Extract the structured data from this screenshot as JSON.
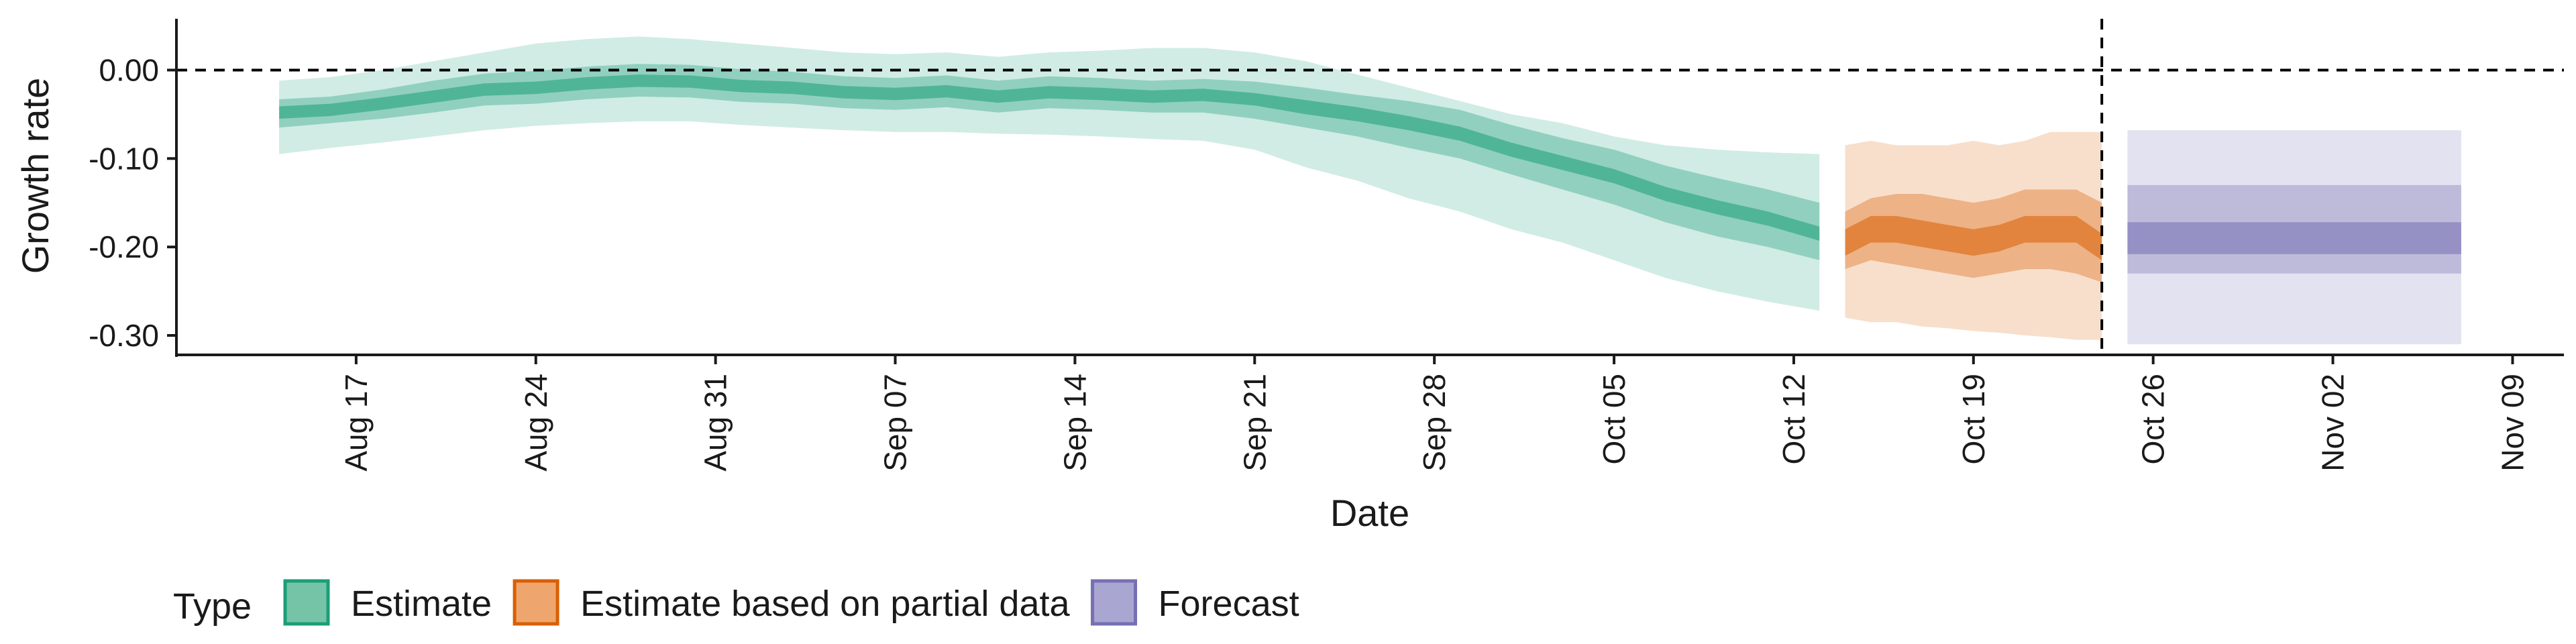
{
  "chart_data": {
    "type": "area",
    "xlabel": "Date",
    "ylabel": "Growth rate",
    "x_ticks": [
      "2020-08-17",
      "2020-08-24",
      "2020-08-31",
      "2020-09-07",
      "2020-09-14",
      "2020-09-21",
      "2020-09-28",
      "2020-10-05",
      "2020-10-12",
      "2020-10-19",
      "2020-10-26",
      "2020-11-02",
      "2020-11-09"
    ],
    "x_tick_labels": [
      "Aug 17",
      "Aug 24",
      "Aug 31",
      "Sep 07",
      "Sep 14",
      "Sep 21",
      "Sep 28",
      "Oct 05",
      "Oct 12",
      "Oct 19",
      "Oct 26",
      "Nov 02",
      "Nov 09"
    ],
    "xlim": [
      "2020-08-10",
      "2020-11-11"
    ],
    "y_ticks": [
      0.0,
      -0.1,
      -0.2,
      -0.3
    ],
    "y_tick_labels": [
      "0.00",
      "-0.10",
      "-0.20",
      "-0.30"
    ],
    "ylim": [
      -0.322,
      0.058
    ],
    "reference_lines": [
      {
        "axis": "y",
        "value": 0.0,
        "style": "dashed"
      },
      {
        "axis": "x",
        "value": "2020-10-24",
        "style": "dashed"
      }
    ],
    "legend": {
      "title": "Type",
      "position": "bottom-left",
      "entries": [
        {
          "label": "Estimate",
          "fill": "#76c4a8",
          "stroke": "#1b9e77"
        },
        {
          "label": "Estimate based on partial data",
          "fill": "#eea66e",
          "stroke": "#d95f02"
        },
        {
          "label": "Forecast",
          "fill": "#a9a6d2",
          "stroke": "#7570b3"
        }
      ]
    },
    "series": [
      {
        "name": "Estimate",
        "color": "#1b9e77",
        "x": [
          "2020-08-14",
          "2020-08-16",
          "2020-08-18",
          "2020-08-20",
          "2020-08-22",
          "2020-08-24",
          "2020-08-26",
          "2020-08-28",
          "2020-08-30",
          "2020-09-01",
          "2020-09-03",
          "2020-09-05",
          "2020-09-07",
          "2020-09-09",
          "2020-09-11",
          "2020-09-13",
          "2020-09-15",
          "2020-09-17",
          "2020-09-19",
          "2020-09-21",
          "2020-09-23",
          "2020-09-25",
          "2020-09-27",
          "2020-09-29",
          "2020-10-01",
          "2020-10-03",
          "2020-10-05",
          "2020-10-07",
          "2020-10-09",
          "2020-10-11",
          "2020-10-13"
        ],
        "median": [
          -0.048,
          -0.045,
          -0.038,
          -0.03,
          -0.022,
          -0.02,
          -0.015,
          -0.012,
          -0.013,
          -0.018,
          -0.02,
          -0.025,
          -0.027,
          -0.024,
          -0.03,
          -0.025,
          -0.027,
          -0.03,
          -0.028,
          -0.033,
          -0.042,
          -0.05,
          -0.06,
          -0.072,
          -0.09,
          -0.105,
          -0.12,
          -0.14,
          -0.155,
          -0.168,
          -0.185
        ],
        "bands": [
          {
            "level": "90%",
            "lower": [
              -0.095,
              -0.088,
              -0.082,
              -0.075,
              -0.068,
              -0.063,
              -0.06,
              -0.058,
              -0.058,
              -0.062,
              -0.065,
              -0.068,
              -0.07,
              -0.07,
              -0.072,
              -0.073,
              -0.075,
              -0.078,
              -0.08,
              -0.09,
              -0.11,
              -0.125,
              -0.145,
              -0.16,
              -0.18,
              -0.195,
              -0.215,
              -0.235,
              -0.25,
              -0.262,
              -0.272
            ],
            "upper": [
              -0.012,
              -0.008,
              0.0,
              0.01,
              0.02,
              0.03,
              0.035,
              0.038,
              0.035,
              0.03,
              0.025,
              0.02,
              0.018,
              0.02,
              0.015,
              0.02,
              0.022,
              0.025,
              0.025,
              0.02,
              0.01,
              -0.005,
              -0.02,
              -0.035,
              -0.05,
              -0.06,
              -0.075,
              -0.085,
              -0.09,
              -0.093,
              -0.095
            ]
          },
          {
            "level": "50%",
            "lower": [
              -0.065,
              -0.06,
              -0.055,
              -0.048,
              -0.04,
              -0.038,
              -0.033,
              -0.03,
              -0.031,
              -0.036,
              -0.038,
              -0.043,
              -0.045,
              -0.042,
              -0.048,
              -0.043,
              -0.045,
              -0.048,
              -0.048,
              -0.055,
              -0.065,
              -0.075,
              -0.088,
              -0.1,
              -0.118,
              -0.135,
              -0.152,
              -0.172,
              -0.188,
              -0.2,
              -0.215
            ],
            "upper": [
              -0.033,
              -0.03,
              -0.022,
              -0.012,
              -0.004,
              -0.001,
              0.004,
              0.007,
              0.006,
              0.001,
              -0.002,
              -0.007,
              -0.009,
              -0.006,
              -0.012,
              -0.007,
              -0.009,
              -0.012,
              -0.01,
              -0.013,
              -0.02,
              -0.028,
              -0.035,
              -0.045,
              -0.062,
              -0.077,
              -0.09,
              -0.108,
              -0.122,
              -0.135,
              -0.15
            ]
          },
          {
            "level": "20%",
            "lower": [
              -0.055,
              -0.052,
              -0.045,
              -0.037,
              -0.029,
              -0.027,
              -0.022,
              -0.019,
              -0.02,
              -0.025,
              -0.027,
              -0.032,
              -0.034,
              -0.031,
              -0.037,
              -0.032,
              -0.034,
              -0.037,
              -0.035,
              -0.04,
              -0.05,
              -0.058,
              -0.068,
              -0.08,
              -0.098,
              -0.113,
              -0.128,
              -0.148,
              -0.163,
              -0.176,
              -0.193
            ],
            "upper": [
              -0.041,
              -0.038,
              -0.031,
              -0.023,
              -0.015,
              -0.013,
              -0.008,
              -0.005,
              -0.006,
              -0.011,
              -0.013,
              -0.018,
              -0.02,
              -0.017,
              -0.023,
              -0.018,
              -0.02,
              -0.023,
              -0.021,
              -0.026,
              -0.034,
              -0.042,
              -0.052,
              -0.064,
              -0.082,
              -0.097,
              -0.112,
              -0.132,
              -0.147,
              -0.16,
              -0.177
            ]
          }
        ]
      },
      {
        "name": "Estimate based on partial data",
        "color": "#d95f02",
        "x": [
          "2020-10-14",
          "2020-10-15",
          "2020-10-16",
          "2020-10-17",
          "2020-10-18",
          "2020-10-19",
          "2020-10-20",
          "2020-10-21",
          "2020-10-22",
          "2020-10-23",
          "2020-10-24"
        ],
        "median": [
          -0.195,
          -0.18,
          -0.18,
          -0.185,
          -0.19,
          -0.195,
          -0.19,
          -0.18,
          -0.18,
          -0.18,
          -0.2
        ],
        "bands": [
          {
            "level": "90%",
            "lower": [
              -0.28,
              -0.285,
              -0.285,
              -0.29,
              -0.292,
              -0.295,
              -0.297,
              -0.3,
              -0.302,
              -0.305,
              -0.305
            ],
            "upper": [
              -0.085,
              -0.08,
              -0.085,
              -0.085,
              -0.085,
              -0.08,
              -0.085,
              -0.08,
              -0.07,
              -0.07,
              -0.07
            ]
          },
          {
            "level": "50%",
            "lower": [
              -0.225,
              -0.215,
              -0.22,
              -0.225,
              -0.23,
              -0.235,
              -0.23,
              -0.225,
              -0.225,
              -0.23,
              -0.24
            ],
            "upper": [
              -0.16,
              -0.145,
              -0.14,
              -0.14,
              -0.145,
              -0.15,
              -0.145,
              -0.135,
              -0.135,
              -0.135,
              -0.15
            ]
          },
          {
            "level": "20%",
            "lower": [
              -0.21,
              -0.195,
              -0.195,
              -0.2,
              -0.205,
              -0.21,
              -0.205,
              -0.195,
              -0.195,
              -0.195,
              -0.215
            ],
            "upper": [
              -0.18,
              -0.165,
              -0.165,
              -0.17,
              -0.175,
              -0.18,
              -0.175,
              -0.165,
              -0.165,
              -0.165,
              -0.185
            ]
          }
        ]
      },
      {
        "name": "Forecast",
        "color": "#7570b3",
        "x": [
          "2020-10-25",
          "2020-11-07"
        ],
        "median": [
          -0.19,
          -0.19
        ],
        "bands": [
          {
            "level": "90%",
            "lower": [
              -0.31,
              -0.31
            ],
            "upper": [
              -0.068,
              -0.068
            ]
          },
          {
            "level": "50%",
            "lower": [
              -0.23,
              -0.23
            ],
            "upper": [
              -0.13,
              -0.13
            ]
          },
          {
            "level": "20%",
            "lower": [
              -0.208,
              -0.208
            ],
            "upper": [
              -0.172,
              -0.172
            ]
          }
        ]
      }
    ]
  }
}
